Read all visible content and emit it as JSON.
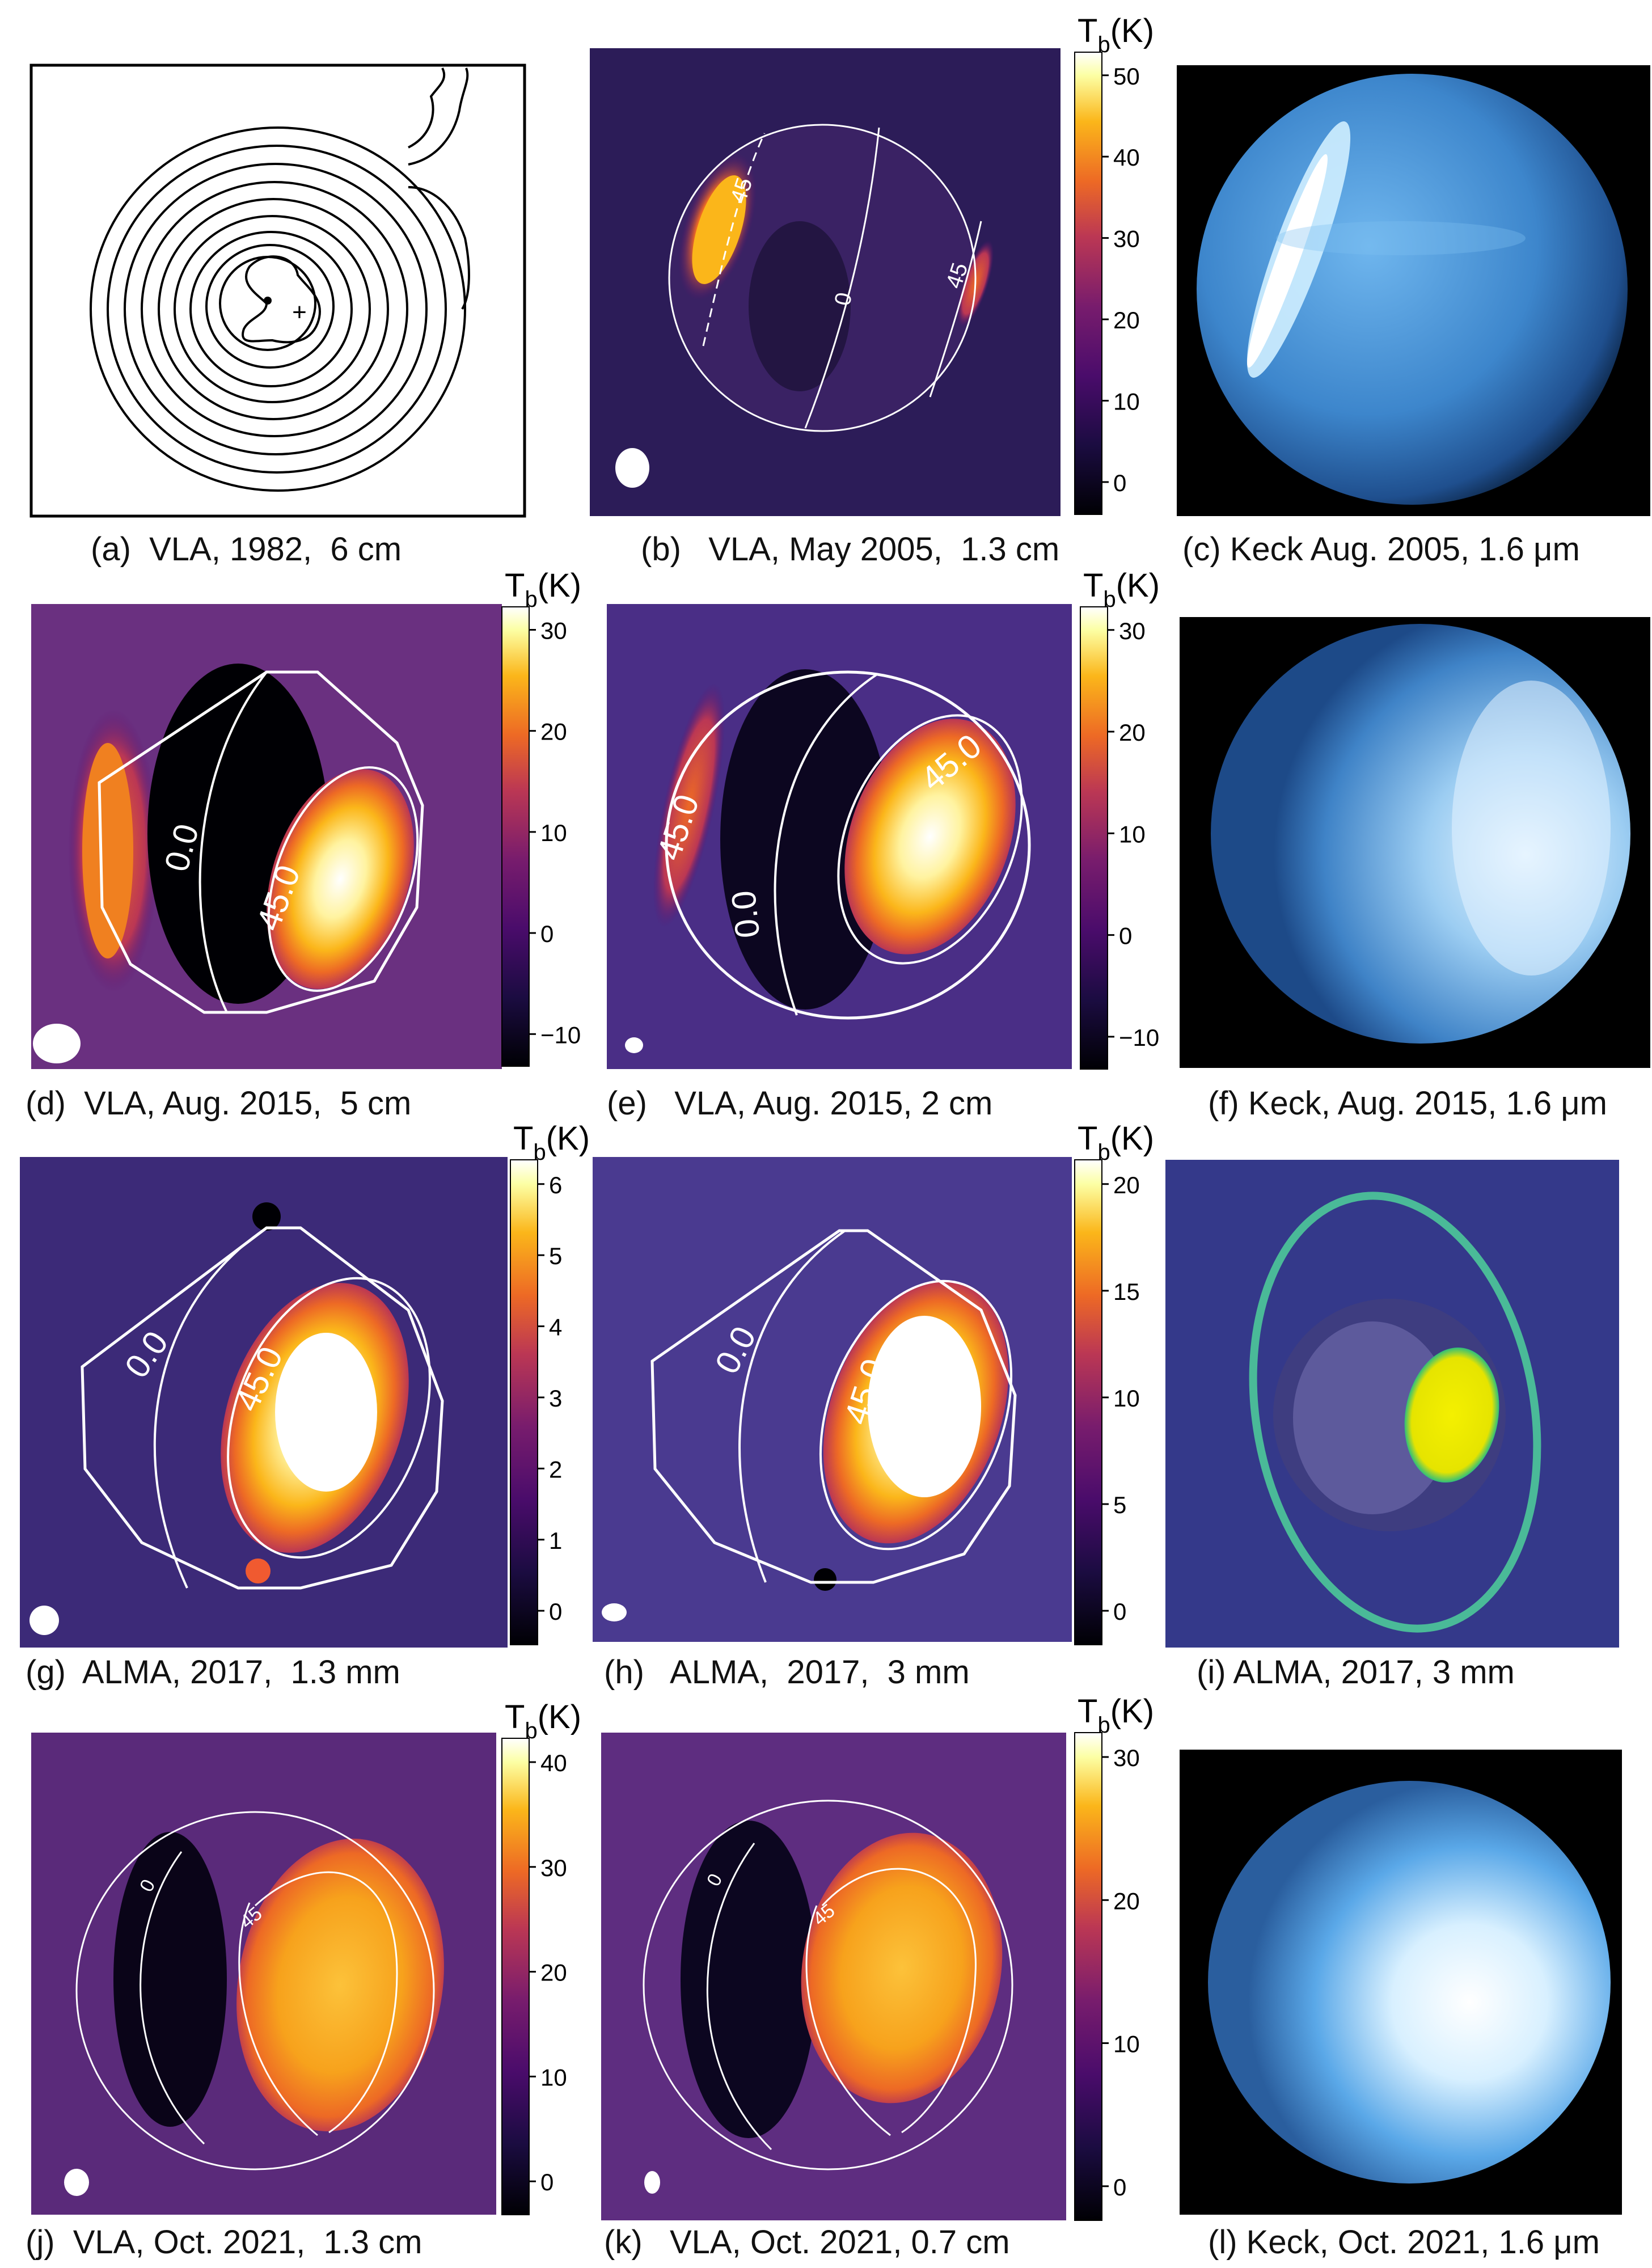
{
  "colorbar_title": "T",
  "colorbar_sub": "b",
  "colorbar_unit": "(K)",
  "panels": [
    {
      "id": "a",
      "caption": "(a)  VLA, 1982,  6 cm"
    },
    {
      "id": "b",
      "caption": "(b)   VLA, May 2005,  1.3 cm",
      "contours": [
        "45",
        "0",
        "45"
      ],
      "colorbar_ticks": [
        "50",
        "40",
        "30",
        "20",
        "10",
        "0"
      ]
    },
    {
      "id": "c",
      "caption": "(c) Keck Aug. 2005, 1.6 μm"
    },
    {
      "id": "d",
      "caption": "(d)  VLA, Aug. 2015,  5 cm",
      "contours": [
        "0.0",
        "45.0"
      ],
      "colorbar_ticks": [
        "30",
        "20",
        "10",
        "0",
        "−10"
      ]
    },
    {
      "id": "e",
      "caption": "(e)   VLA, Aug. 2015, 2 cm",
      "contours": [
        "45.0",
        "0.0",
        "45.0"
      ],
      "colorbar_ticks": [
        "30",
        "20",
        "10",
        "0",
        "−10"
      ]
    },
    {
      "id": "f",
      "caption": "(f) Keck, Aug. 2015, 1.6 μm"
    },
    {
      "id": "g",
      "caption": "(g)  ALMA, 2017,  1.3 mm",
      "contours": [
        "0.0",
        "45.0"
      ],
      "colorbar_ticks": [
        "6",
        "5",
        "4",
        "3",
        "2",
        "1",
        "0"
      ]
    },
    {
      "id": "h",
      "caption": "(h)   ALMA,  2017,  3 mm",
      "contours": [
        "0.0",
        "45.0"
      ],
      "colorbar_ticks": [
        "20",
        "15",
        "10",
        "5",
        "0"
      ]
    },
    {
      "id": "i",
      "caption": "(i) ALMA, 2017, 3 mm"
    },
    {
      "id": "j",
      "caption": "(j)  VLA, Oct. 2021,  1.3 cm",
      "contours": [
        "0",
        "45"
      ],
      "colorbar_ticks": [
        "40",
        "30",
        "20",
        "10",
        "0"
      ]
    },
    {
      "id": "k",
      "caption": "(k)   VLA, Oct. 2021, 0.7 cm",
      "contours": [
        "0",
        "45"
      ],
      "colorbar_ticks": [
        "30",
        "20",
        "10",
        "0"
      ]
    },
    {
      "id": "l",
      "caption": "(l) Keck, Oct. 2021, 1.6 μm"
    }
  ]
}
